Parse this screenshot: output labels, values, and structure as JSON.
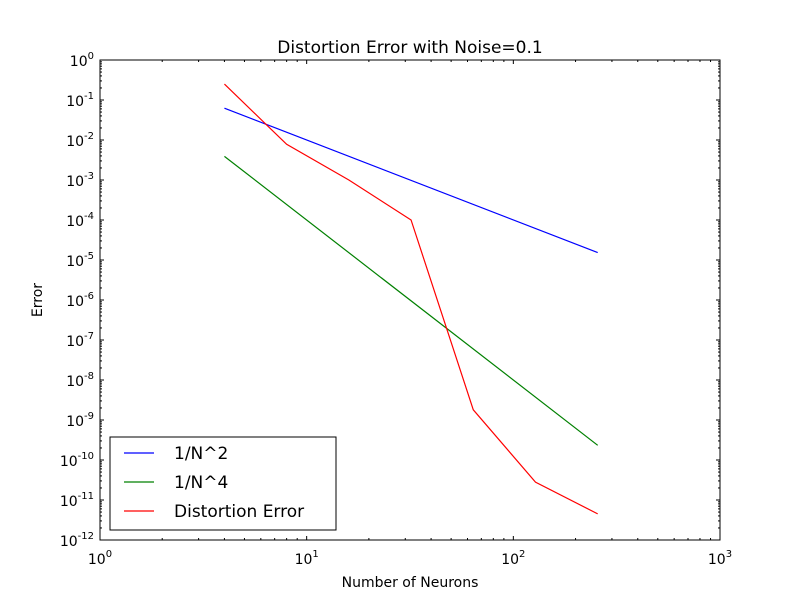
{
  "chart_data": {
    "type": "line",
    "title": "Distortion Error with Noise=0.1",
    "xlabel": "Number of Neurons",
    "ylabel": "Error",
    "xscale": "log",
    "yscale": "log",
    "xlim": [
      1,
      1000
    ],
    "ylim": [
      1e-12,
      1
    ],
    "x_ticks": [
      {
        "value": 1,
        "base": "10",
        "exp": "0"
      },
      {
        "value": 10,
        "base": "10",
        "exp": "1"
      },
      {
        "value": 100,
        "base": "10",
        "exp": "2"
      },
      {
        "value": 1000,
        "base": "10",
        "exp": "3"
      }
    ],
    "y_ticks": [
      {
        "value": 1,
        "base": "10",
        "exp": "0"
      },
      {
        "value": 0.1,
        "base": "10",
        "exp": "-1"
      },
      {
        "value": 0.01,
        "base": "10",
        "exp": "-2"
      },
      {
        "value": 0.001,
        "base": "10",
        "exp": "-3"
      },
      {
        "value": 0.0001,
        "base": "10",
        "exp": "-4"
      },
      {
        "value": 1e-05,
        "base": "10",
        "exp": "-5"
      },
      {
        "value": 1e-06,
        "base": "10",
        "exp": "-6"
      },
      {
        "value": 1e-07,
        "base": "10",
        "exp": "-7"
      },
      {
        "value": 1e-08,
        "base": "10",
        "exp": "-8"
      },
      {
        "value": 1e-09,
        "base": "10",
        "exp": "-9"
      },
      {
        "value": 1e-10,
        "base": "10",
        "exp": "-10"
      },
      {
        "value": 1e-11,
        "base": "10",
        "exp": "-11"
      },
      {
        "value": 1e-12,
        "base": "10",
        "exp": "-12"
      }
    ],
    "series": [
      {
        "name": "1/N^2",
        "color": "#0000ff",
        "x": [
          4,
          256
        ],
        "y": [
          0.0625,
          1.53e-05
        ]
      },
      {
        "name": "1/N^4",
        "color": "#008000",
        "x": [
          4,
          256
        ],
        "y": [
          0.0039,
          2.33e-10
        ]
      },
      {
        "name": "Distortion Error",
        "color": "#ff0000",
        "x": [
          4,
          8,
          16,
          32,
          64,
          128,
          256
        ],
        "y": [
          0.25,
          0.0078,
          0.001,
          0.0001,
          1.8e-09,
          2.8e-11,
          4.5e-12
        ]
      }
    ],
    "legend_position": "lower-left",
    "grid": false
  }
}
